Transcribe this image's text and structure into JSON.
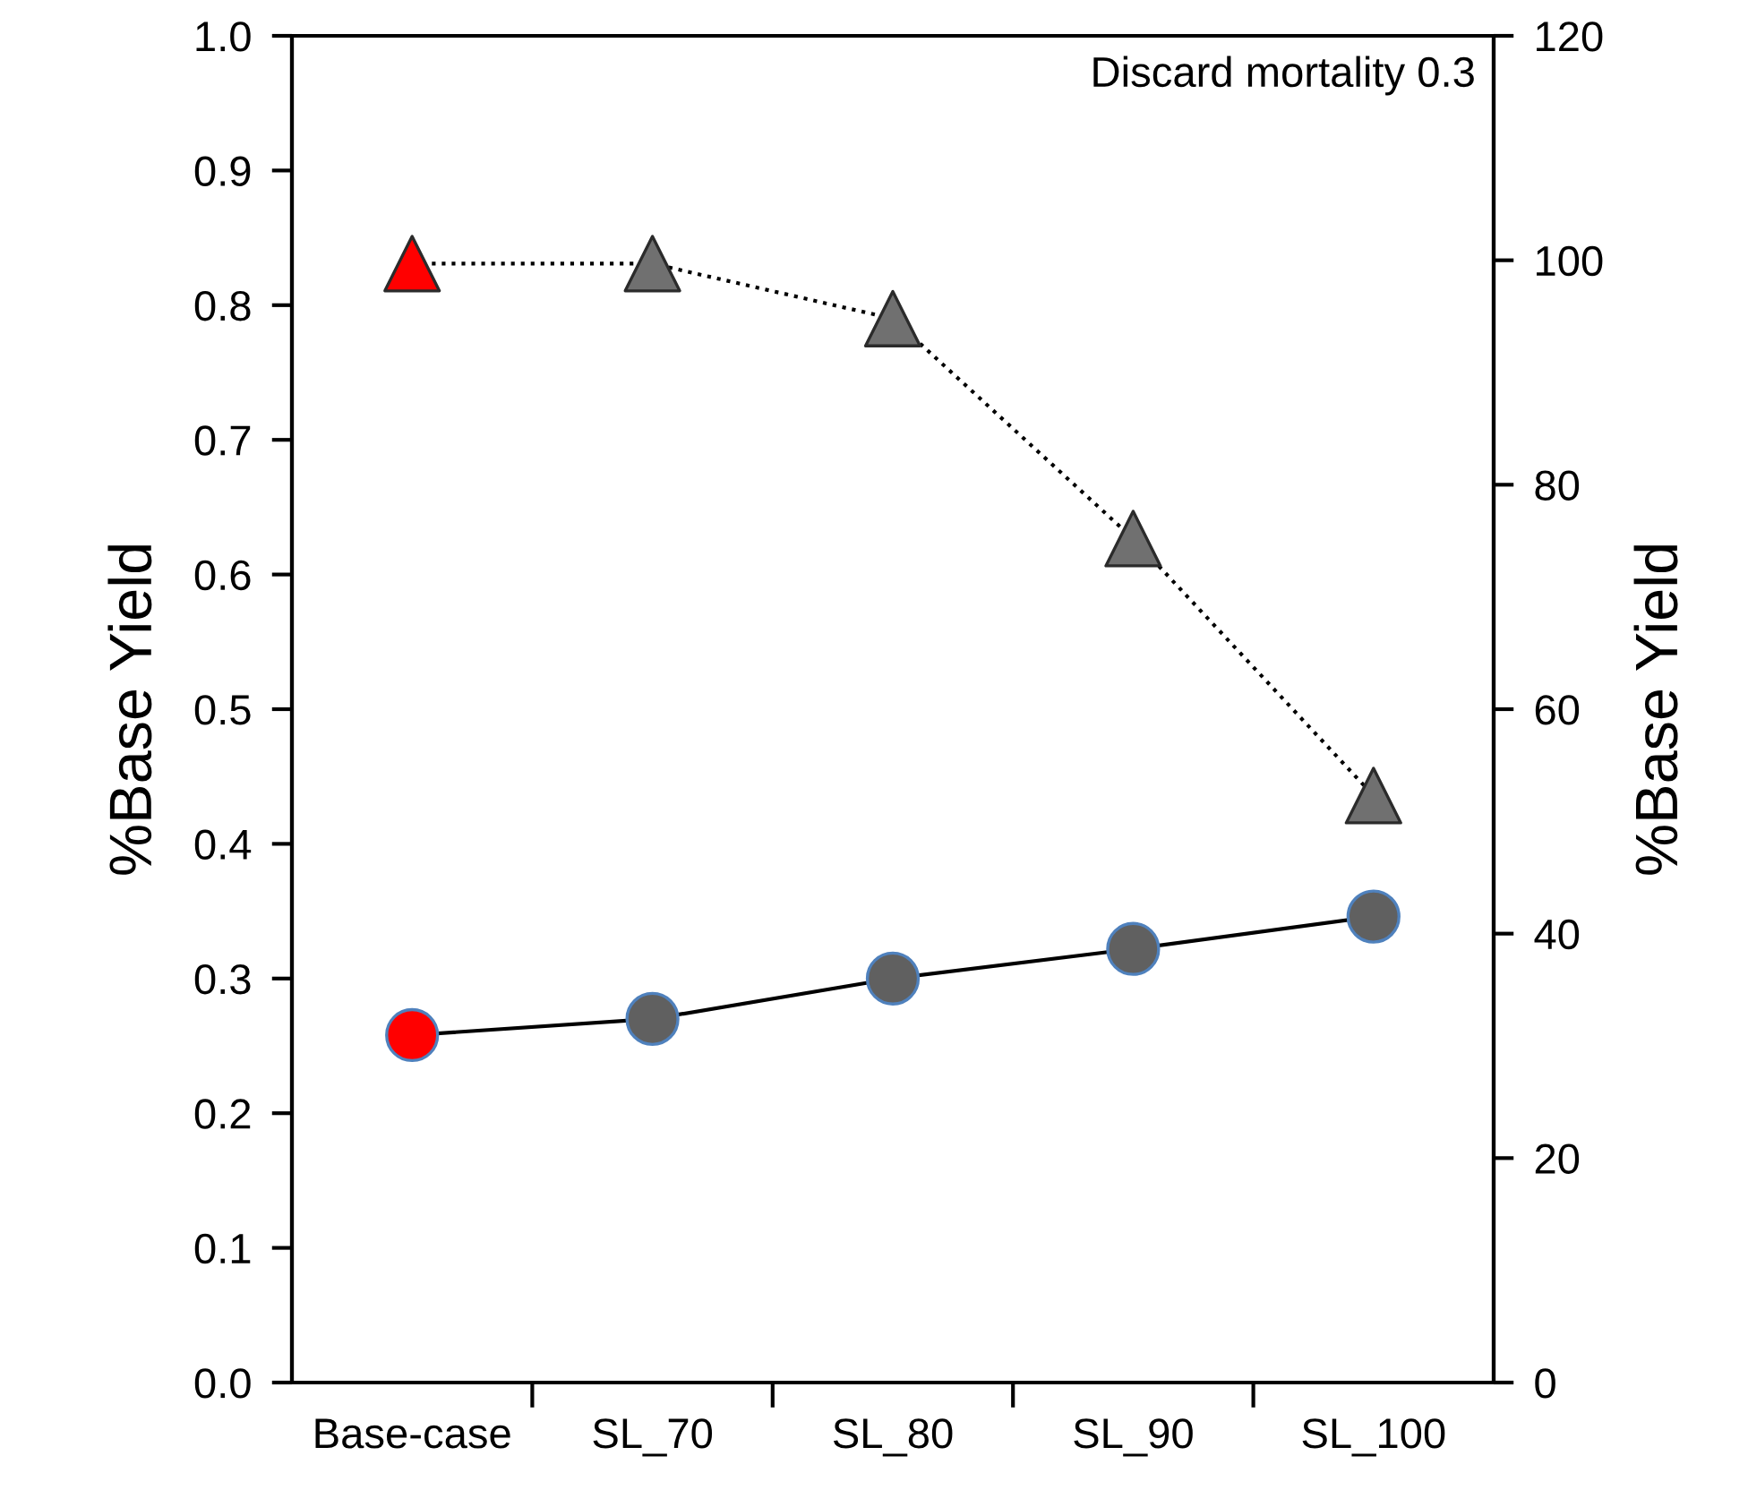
{
  "chart_data": {
    "type": "line",
    "categories": [
      "Base-case",
      "SL_70",
      "SL_80",
      "SL_90",
      "SL_100"
    ],
    "ylabel": "%Base Yield",
    "y2label": "%Base Yield",
    "annotations": [
      "Discard mortality 0.3"
    ],
    "series": [
      {
        "axis": "y",
        "color": "#000000",
        "colors": [
          "#ff0000",
          "#606060",
          "#606060",
          "#606060",
          "#606060"
        ],
        "marker": "circle",
        "line_style": "solid",
        "values": [
          0.258,
          0.27,
          0.3,
          0.322,
          0.346
        ]
      },
      {
        "axis": "y2",
        "color": "#000000",
        "colors": [
          "#ff0000",
          "#707070",
          "#707070",
          "#707070",
          "#707070"
        ],
        "marker": "triangle",
        "line_style": "dotted",
        "values": [
          99.7,
          99.7,
          94.8,
          75.2,
          52.3
        ]
      }
    ],
    "ylim": [
      0,
      1.0
    ],
    "yticks": [
      {
        "value": 0,
        "label": "0.0"
      },
      0.1,
      0.2,
      0.3,
      0.4,
      0.5,
      0.6,
      0.7,
      0.8,
      0.9,
      {
        "value": 1,
        "label": "1.0"
      }
    ],
    "y2lim": [
      0,
      120
    ],
    "y2ticks": [
      0,
      20,
      40,
      60,
      80,
      100,
      120
    ],
    "grid": false,
    "legend": false
  }
}
